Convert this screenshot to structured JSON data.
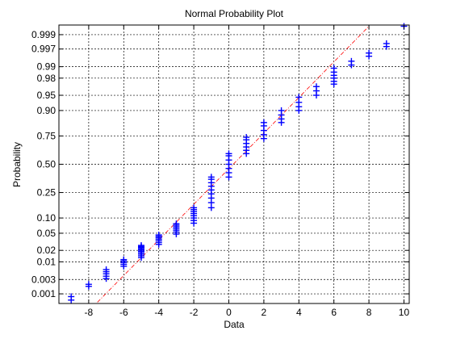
{
  "chart_data": {
    "type": "scatter",
    "title": "Normal Probability Plot",
    "xlabel": "Data",
    "ylabel": "Probability",
    "xlim": [
      -9.7,
      10.3
    ],
    "x_ticks": [
      -8,
      -6,
      -4,
      -2,
      0,
      2,
      4,
      6,
      8,
      10
    ],
    "y_scale": "normal-probability",
    "ylim": [
      0.00045,
      0.99955
    ],
    "y_ticks": [
      0.001,
      0.003,
      0.01,
      0.02,
      0.05,
      0.1,
      0.25,
      0.5,
      0.75,
      0.9,
      0.95,
      0.98,
      0.99,
      0.997,
      0.999
    ],
    "y_tick_labels": [
      "0.001",
      "0.003",
      "0.01",
      "0.02",
      "0.05",
      "0.10",
      "0.25",
      "0.50",
      "0.75",
      "0.90",
      "0.95",
      "0.98",
      "0.99",
      "0.997",
      "0.999"
    ],
    "grid": true,
    "marker": "+",
    "marker_color": "#0000ff",
    "reference_line": {
      "style": "dash-dot",
      "color": "#ff0000",
      "points": [
        [
          -7.5,
          0.0005
        ],
        [
          8.0,
          0.9995
        ]
      ]
    },
    "points": [
      {
        "x": -9,
        "p": [
          0.0006,
          0.0008
        ]
      },
      {
        "x": -8,
        "p": [
          0.0018,
          0.0021
        ]
      },
      {
        "x": -7,
        "p": [
          0.0032,
          0.0038,
          0.0045,
          0.0052,
          0.006
        ]
      },
      {
        "x": -6,
        "p": [
          0.0075,
          0.0085,
          0.0095,
          0.0105,
          0.0115
        ]
      },
      {
        "x": -5,
        "p": [
          0.013,
          0.0145,
          0.016,
          0.0175,
          0.019,
          0.0205,
          0.022,
          0.0235,
          0.025,
          0.0265
        ]
      },
      {
        "x": -4,
        "p": [
          0.028,
          0.031,
          0.034,
          0.037,
          0.04,
          0.043,
          0.046
        ]
      },
      {
        "x": -3,
        "p": [
          0.048,
          0.053,
          0.058,
          0.063,
          0.068,
          0.073,
          0.078
        ]
      },
      {
        "x": -2,
        "p": [
          0.08,
          0.09,
          0.1,
          0.11,
          0.12,
          0.13,
          0.14,
          0.15
        ]
      },
      {
        "x": -1,
        "p": [
          0.15,
          0.18,
          0.21,
          0.24,
          0.27,
          0.3,
          0.33,
          0.36,
          0.38
        ]
      },
      {
        "x": 0,
        "p": [
          0.38,
          0.42,
          0.46,
          0.5,
          0.54,
          0.58,
          0.6
        ]
      },
      {
        "x": 1,
        "p": [
          0.6,
          0.63,
          0.66,
          0.69,
          0.72,
          0.74
        ]
      },
      {
        "x": 2,
        "p": [
          0.73,
          0.76,
          0.79,
          0.82,
          0.84
        ]
      },
      {
        "x": 3,
        "p": [
          0.84,
          0.86,
          0.88,
          0.9
        ]
      },
      {
        "x": 4,
        "p": [
          0.9,
          0.915,
          0.93,
          0.945
        ]
      },
      {
        "x": 5,
        "p": [
          0.95,
          0.96,
          0.968
        ]
      },
      {
        "x": 6,
        "p": [
          0.972,
          0.976,
          0.98,
          0.983,
          0.986,
          0.989
        ]
      },
      {
        "x": 7,
        "p": [
          0.991,
          0.993
        ]
      },
      {
        "x": 8,
        "p": [
          0.995,
          0.996
        ]
      },
      {
        "x": 9,
        "p": [
          0.9975,
          0.998
        ]
      },
      {
        "x": 10,
        "p": [
          0.9995
        ]
      }
    ]
  }
}
